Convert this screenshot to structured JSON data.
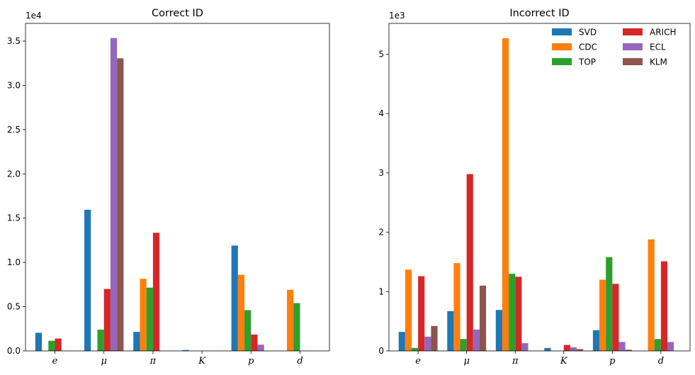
{
  "chart_data": [
    {
      "type": "bar",
      "title": "Correct ID",
      "scale_label": "1e4",
      "categories": [
        "e",
        "μ",
        "π",
        "K",
        "p",
        "d"
      ],
      "ylim": [
        0,
        37000
      ],
      "yticks": [
        0,
        5000,
        10000,
        15000,
        20000,
        25000,
        30000,
        35000
      ],
      "ytick_labels": [
        "0.0",
        "0.5",
        "1.0",
        "1.5",
        "2.0",
        "2.5",
        "3.0",
        "3.5"
      ],
      "series": [
        {
          "name": "SVD",
          "color": "#1f77b4",
          "values": [
            2050,
            15950,
            2150,
            100,
            11900,
            0
          ]
        },
        {
          "name": "CDC",
          "color": "#ff7f0e",
          "values": [
            0,
            0,
            8150,
            0,
            8600,
            6900
          ]
        },
        {
          "name": "TOP",
          "color": "#2ca02c",
          "values": [
            1150,
            2400,
            7150,
            0,
            4600,
            5400
          ]
        },
        {
          "name": "ARICH",
          "color": "#d62728",
          "values": [
            1400,
            7000,
            13350,
            0,
            1850,
            0
          ]
        },
        {
          "name": "ECL",
          "color": "#9467bd",
          "values": [
            0,
            35350,
            0,
            0,
            700,
            0
          ]
        },
        {
          "name": "KLM",
          "color": "#8c564b",
          "values": [
            0,
            33050,
            0,
            0,
            0,
            0
          ]
        }
      ]
    },
    {
      "type": "bar",
      "title": "Incorrect ID",
      "scale_label": "1e3",
      "categories": [
        "e",
        "μ",
        "π",
        "K",
        "p",
        "d"
      ],
      "ylim": [
        0,
        5520
      ],
      "yticks": [
        0,
        1000,
        2000,
        3000,
        4000,
        5000
      ],
      "ytick_labels": [
        "0",
        "1",
        "2",
        "3",
        "4",
        "5"
      ],
      "legend": "top-right",
      "series": [
        {
          "name": "SVD",
          "color": "#1f77b4",
          "values": [
            320,
            670,
            690,
            50,
            350,
            0
          ]
        },
        {
          "name": "CDC",
          "color": "#ff7f0e",
          "values": [
            1370,
            1480,
            5270,
            0,
            1200,
            1880
          ]
        },
        {
          "name": "TOP",
          "color": "#2ca02c",
          "values": [
            50,
            200,
            1300,
            0,
            1580,
            200
          ]
        },
        {
          "name": "ARICH",
          "color": "#d62728",
          "values": [
            1260,
            2980,
            1250,
            100,
            1130,
            1510
          ]
        },
        {
          "name": "ECL",
          "color": "#9467bd",
          "values": [
            240,
            360,
            130,
            60,
            150,
            150
          ]
        },
        {
          "name": "KLM",
          "color": "#8c564b",
          "values": [
            420,
            1100,
            0,
            30,
            20,
            0
          ]
        }
      ]
    }
  ]
}
